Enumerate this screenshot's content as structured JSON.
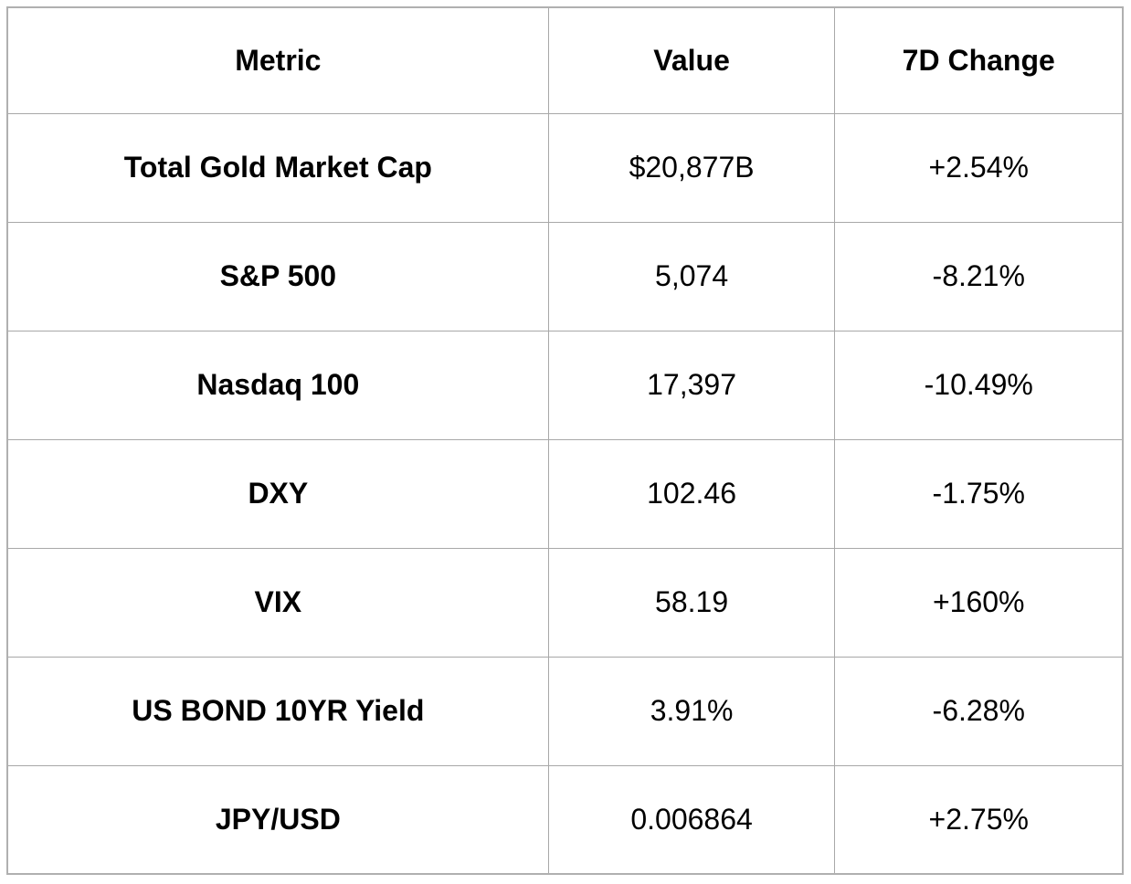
{
  "chart_data": {
    "type": "table",
    "columns": [
      "Metric",
      "Value",
      "7D Change"
    ],
    "rows": [
      [
        "Total Gold Market Cap",
        "$20,877B",
        "+2.54%"
      ],
      [
        "S&P 500",
        "5,074",
        "-8.21%"
      ],
      [
        "Nasdaq 100",
        "17,397",
        "-10.49%"
      ],
      [
        "DXY",
        "102.46",
        "-1.75%"
      ],
      [
        "VIX",
        "58.19",
        "+160%"
      ],
      [
        "US BOND 10YR Yield",
        "3.91%",
        "-6.28%"
      ],
      [
        "JPY/USD",
        "0.006864",
        "+2.75%"
      ]
    ],
    "layout_hints": {
      "header_bold": true,
      "first_column_bold": true,
      "text_align": "center",
      "grid": true
    }
  },
  "table": {
    "headers": {
      "metric": "Metric",
      "value": "Value",
      "change": "7D Change"
    },
    "rows": [
      {
        "metric": "Total Gold Market Cap",
        "value": "$20,877B",
        "change": "+2.54%"
      },
      {
        "metric": "S&P 500",
        "value": "5,074",
        "change": "-8.21%"
      },
      {
        "metric": "Nasdaq 100",
        "value": "17,397",
        "change": "-10.49%"
      },
      {
        "metric": "DXY",
        "value": "102.46",
        "change": "-1.75%"
      },
      {
        "metric": "VIX",
        "value": "58.19",
        "change": "+160%"
      },
      {
        "metric": "US BOND 10YR Yield",
        "value": "3.91%",
        "change": "-6.28%"
      },
      {
        "metric": "JPY/USD",
        "value": "0.006864",
        "change": "+2.75%"
      }
    ]
  },
  "colors": {
    "background": "#ffffff",
    "border": "#a8a8a8",
    "outer_border": "#b0b0b0",
    "text": "#000000"
  }
}
